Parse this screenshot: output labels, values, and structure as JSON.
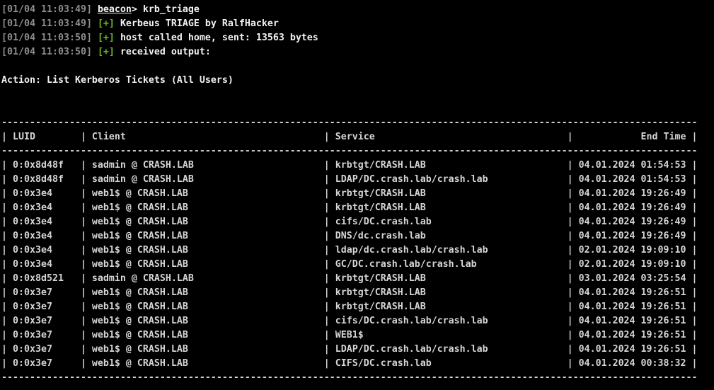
{
  "colors": {
    "background": "#000000",
    "timestamp": "#8d8d8d",
    "success": "#66b82a",
    "bright_text": "#f1f1f1",
    "table_text": "#d5d5d5"
  },
  "log_lines": [
    {
      "time": "[01/04 11:03:49]",
      "type": "prompt",
      "prompt": "beacon",
      "prompt_suffix": ">",
      "message": "krb_triage"
    },
    {
      "time": "[01/04 11:03:49]",
      "type": "success",
      "badge": "[+]",
      "message": "Kerbeus TRIAGE by RalfHacker"
    },
    {
      "time": "[01/04 11:03:50]",
      "type": "success",
      "badge": "[+]",
      "message": "host called home, sent: 13563 bytes"
    },
    {
      "time": "[01/04 11:03:50]",
      "type": "success",
      "badge": "[+]",
      "message": "received output:"
    }
  ],
  "action_line": "Action: List Kerberos Tickets (All Users)",
  "table": {
    "columns": [
      {
        "key": "luid",
        "label": "LUID",
        "width": 11,
        "align": "left"
      },
      {
        "key": "client",
        "label": "Client",
        "width": 40,
        "align": "left"
      },
      {
        "key": "service",
        "label": "Service",
        "width": 40,
        "align": "left"
      },
      {
        "key": "end_time",
        "label": "End Time",
        "width": 19,
        "align": "right"
      }
    ],
    "rows": [
      {
        "luid": "0:0x8d48f",
        "client": "sadmin @ CRASH.LAB",
        "service": "krbtgt/CRASH.LAB",
        "end_time": "04.01.2024 01:54:53"
      },
      {
        "luid": "0:0x8d48f",
        "client": "sadmin @ CRASH.LAB",
        "service": "LDAP/DC.crash.lab/crash.lab",
        "end_time": "04.01.2024 01:54:53"
      },
      {
        "luid": "0:0x3e4",
        "client": "web1$ @ CRASH.LAB",
        "service": "krbtgt/CRASH.LAB",
        "end_time": "04.01.2024 19:26:49"
      },
      {
        "luid": "0:0x3e4",
        "client": "web1$ @ CRASH.LAB",
        "service": "krbtgt/CRASH.LAB",
        "end_time": "04.01.2024 19:26:49"
      },
      {
        "luid": "0:0x3e4",
        "client": "web1$ @ CRASH.LAB",
        "service": "cifs/DC.crash.lab",
        "end_time": "04.01.2024 19:26:49"
      },
      {
        "luid": "0:0x3e4",
        "client": "web1$ @ CRASH.LAB",
        "service": "DNS/dc.crash.lab",
        "end_time": "04.01.2024 19:26:49"
      },
      {
        "luid": "0:0x3e4",
        "client": "web1$ @ CRASH.LAB",
        "service": "ldap/dc.crash.lab/crash.lab",
        "end_time": "02.01.2024 19:09:10"
      },
      {
        "luid": "0:0x3e4",
        "client": "web1$ @ CRASH.LAB",
        "service": "GC/DC.crash.lab/crash.lab",
        "end_time": "02.01.2024 19:09:10"
      },
      {
        "luid": "0:0x8d521",
        "client": "sadmin @ CRASH.LAB",
        "service": "krbtgt/CRASH.LAB",
        "end_time": "03.01.2024 03:25:54"
      },
      {
        "luid": "0:0x3e7",
        "client": "web1$ @ CRASH.LAB",
        "service": "krbtgt/CRASH.LAB",
        "end_time": "04.01.2024 19:26:51"
      },
      {
        "luid": "0:0x3e7",
        "client": "web1$ @ CRASH.LAB",
        "service": "krbtgt/CRASH.LAB",
        "end_time": "04.01.2024 19:26:51"
      },
      {
        "luid": "0:0x3e7",
        "client": "web1$ @ CRASH.LAB",
        "service": "cifs/DC.crash.lab/crash.lab",
        "end_time": "04.01.2024 19:26:51"
      },
      {
        "luid": "0:0x3e7",
        "client": "web1$ @ CRASH.LAB",
        "service": "WEB1$",
        "end_time": "04.01.2024 19:26:51"
      },
      {
        "luid": "0:0x3e7",
        "client": "web1$ @ CRASH.LAB",
        "service": "LDAP/DC.crash.lab/crash.lab",
        "end_time": "04.01.2024 19:26:51"
      },
      {
        "luid": "0:0x3e7",
        "client": "web1$ @ CRASH.LAB",
        "service": "CIFS/DC.crash.lab",
        "end_time": "04.01.2024 00:38:32"
      }
    ]
  }
}
